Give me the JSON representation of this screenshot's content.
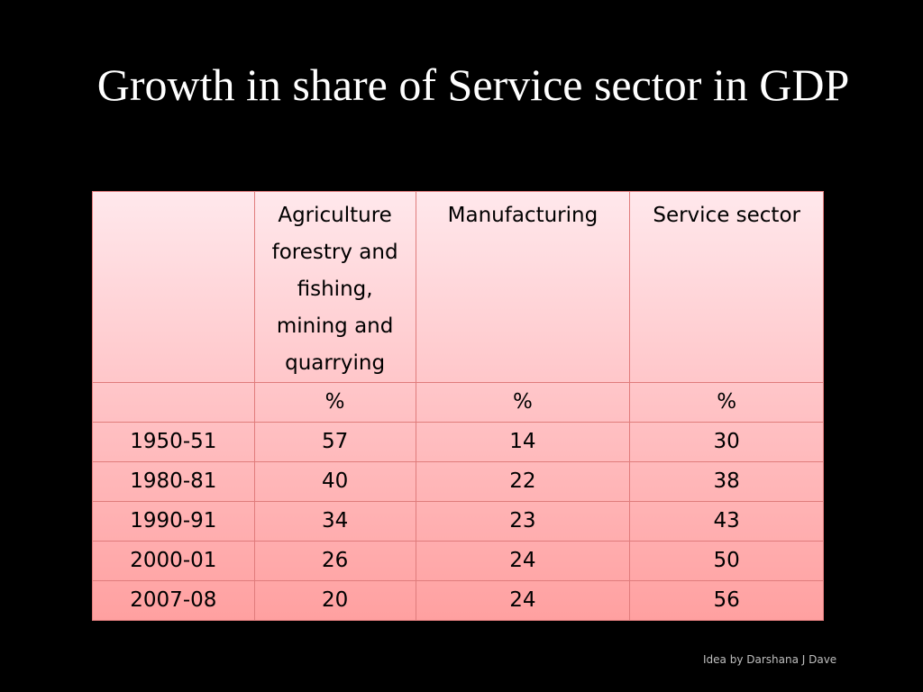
{
  "slide": {
    "title": "Growth in share of Service sector in GDP",
    "footer": "Idea by Darshana J Dave"
  },
  "table": {
    "headers": [
      "",
      "Agriculture forestry and fishing, mining and quarrying",
      "Manufacturing",
      "Service sector"
    ],
    "header_lines": [
      "Agriculture",
      "forestry and",
      "fishing,",
      "mining and",
      "quarrying"
    ],
    "units": [
      "",
      "%",
      "%",
      "%"
    ],
    "rows": [
      [
        "1950-51",
        "57",
        "14",
        "30"
      ],
      [
        "1980-81",
        "40",
        "22",
        "38"
      ],
      [
        "1990-91",
        "34",
        "23",
        "43"
      ],
      [
        "2000-01",
        "26",
        "24",
        "50"
      ],
      [
        "2007-08",
        "20",
        "24",
        "56"
      ]
    ]
  },
  "colors": {
    "background": "#000000",
    "title_text": "#ffffff",
    "table_top": "#ffe8ec",
    "table_bottom": "#ffa0a0",
    "table_border": "#e07c7c"
  }
}
